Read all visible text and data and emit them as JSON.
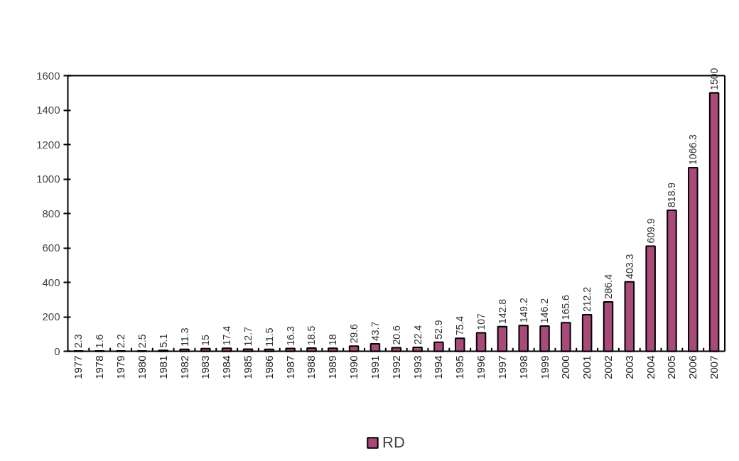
{
  "chart_data": {
    "type": "bar",
    "categories": [
      "1977",
      "1978",
      "1979",
      "1980",
      "1981",
      "1982",
      "1983",
      "1984",
      "1985",
      "1986",
      "1987",
      "1988",
      "1989",
      "1990",
      "1991",
      "1992",
      "1993",
      "1994",
      "1995",
      "1996",
      "1997",
      "1998",
      "1999",
      "2000",
      "2001",
      "2002",
      "2003",
      "2004",
      "2005",
      "2006",
      "2007"
    ],
    "series": [
      {
        "name": "RD",
        "color": "#a84a7a",
        "values": [
          2.3,
          1.6,
          2.2,
          2.5,
          5.1,
          11.3,
          15,
          17.4,
          12.7,
          11.5,
          16.3,
          18.5,
          18,
          29.6,
          43.7,
          20.6,
          22.4,
          52.9,
          75.4,
          107,
          142.8,
          149.2,
          146.2,
          165.6,
          212.2,
          286.4,
          403.3,
          609.9,
          818.9,
          1066.3,
          1500
        ]
      }
    ],
    "ylim": [
      0,
      1600
    ],
    "yticks": [
      0,
      200,
      400,
      600,
      800,
      1000,
      1200,
      1400,
      1600
    ],
    "data_labels": true,
    "grid": false,
    "legend": "bottom"
  }
}
